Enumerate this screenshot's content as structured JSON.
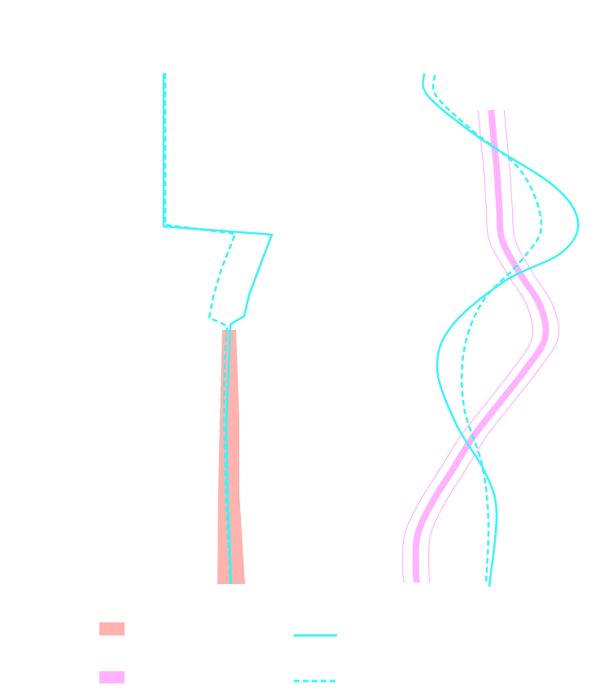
{
  "colors": {
    "salmon": "#ffb3ae",
    "pink": "#ffb3ff",
    "cyan": "#3ff2f5"
  },
  "chart_data": [
    {
      "type": "line",
      "panel": "left",
      "ylim": [
        0,
        630
      ],
      "band": {
        "style": "filled",
        "color": "salmon",
        "y": [
          0,
          110,
          200,
          312
        ],
        "low": [
          7,
          4,
          2,
          1
        ],
        "high": [
          15,
          19,
          19,
          26
        ]
      },
      "series": [
        {
          "style": "solid",
          "color": "cyan",
          "points": [
            [
              8,
              0
            ],
            [
              7,
              100
            ],
            [
              6,
              200
            ],
            [
              3,
              300
            ],
            [
              7,
              312
            ],
            [
              16,
              316
            ],
            [
              17,
              326
            ],
            [
              18,
              332
            ],
            [
              35,
              378
            ],
            [
              51,
              430
            ],
            [
              0,
              440
            ],
            [
              0,
              630
            ]
          ]
        },
        {
          "style": "dashed",
          "color": "cyan",
          "points": [
            [
              8,
              0
            ],
            [
              6,
              100
            ],
            [
              4,
              200
            ],
            [
              2,
              310
            ],
            [
              8,
              318
            ],
            [
              -16,
              326
            ],
            [
              -12,
              336
            ],
            [
              4,
              382
            ],
            [
              13,
              428
            ],
            [
              0,
              438
            ],
            [
              0,
              630
            ]
          ]
        }
      ]
    },
    {
      "type": "line",
      "panel": "right",
      "band": {
        "style": "line",
        "color": "pink",
        "y": [
          0,
          40,
          80,
          120,
          160,
          200,
          240,
          280,
          320,
          360,
          400,
          440,
          480,
          520,
          560,
          580
        ],
        "center": [
          77,
          80,
          83,
          85,
          88,
          105,
          125,
          130,
          110,
          85,
          60,
          40,
          20,
          5,
          3,
          4
        ],
        "spread": 16
      },
      "series": [
        {
          "style": "solid",
          "color": "cyan",
          "points": [
            [
              93,
              0
            ],
            [
              91,
              40
            ],
            [
              70,
              120
            ],
            [
              40,
              210
            ],
            [
              -35,
              270
            ],
            [
              -10,
              330
            ],
            [
              90,
              450
            ],
            [
              135,
              525
            ],
            [
              165,
              578
            ],
            [
              190,
              630
            ]
          ]
        },
        {
          "style": "dashed",
          "color": "cyan",
          "points": [
            [
              88,
              0
            ],
            [
              80,
              40
            ],
            [
              65,
              120
            ],
            [
              45,
              210
            ],
            [
              12,
              270
            ],
            [
              -25,
              330
            ],
            [
              8,
              430
            ],
            [
              50,
              500
            ],
            [
              70,
              578
            ],
            [
              77,
              630
            ]
          ]
        }
      ]
    }
  ]
}
